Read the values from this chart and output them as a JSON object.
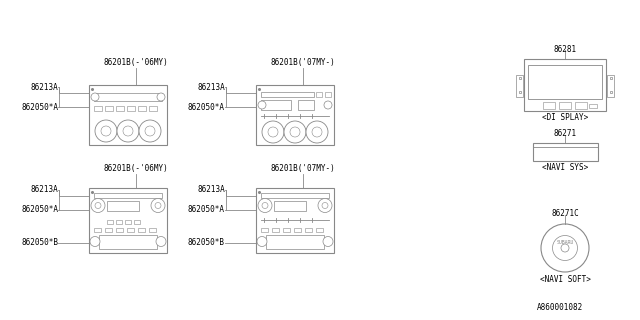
{
  "bg_color": "#ffffff",
  "line_color": "#888888",
  "text_color": "#000000",
  "bottom_label": "A860001082",
  "items": {
    "unit1_label": "86201B(-'06MY)",
    "unit2_label": "86201B('07MY-)",
    "unit3_label": "86201B(-'06MY)",
    "unit4_label": "86201B('07MY-)",
    "part_86213A": "86213A",
    "part_862050A": "862050*A",
    "part_862050B": "862050*B",
    "part_86281": "86281",
    "part_86271": "86271",
    "part_86271C": "86271C",
    "label_display": "<DI SPLAY>",
    "label_navi_sys": "<NAVI SYS>",
    "label_navi_soft": "<NAVI SOFT>"
  }
}
